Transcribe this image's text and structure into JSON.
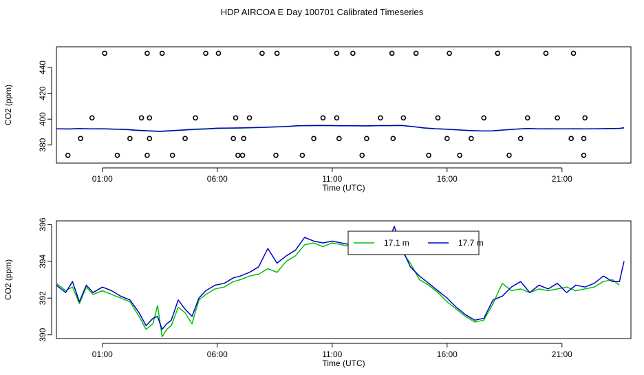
{
  "title": "HDP AIRCOA E  Day 100701  Calibrated Timeseries",
  "colors": {
    "green": "#00c000",
    "blue": "#0000cc",
    "axis": "#000000"
  },
  "chart_data": [
    {
      "type": "scatter",
      "title": "",
      "xlabel": "Time (UTC)",
      "ylabel": "CO2 (ppm)",
      "xlim": [
        -1,
        24
      ],
      "ylim": [
        366,
        456
      ],
      "xticks": [
        1,
        6,
        11,
        16,
        21
      ],
      "xtick_labels": [
        "01:00",
        "06:00",
        "11:00",
        "16:00",
        "21:00"
      ],
      "yticks": [
        380,
        400,
        420,
        440
      ],
      "ytick_labels": [
        "380",
        "400",
        "420",
        "440"
      ],
      "grid": false,
      "series": [
        {
          "marker": "open-circle",
          "x": [
            -0.5,
            0.05,
            0.55,
            1.1,
            1.65,
            2.2,
            2.7,
            2.95,
            2.95,
            3.05,
            3.05,
            3.6,
            4.05,
            4.6,
            5.05,
            5.5,
            6.05,
            6.7,
            6.8,
            6.9,
            7.1,
            7.15,
            7.4,
            7.95,
            8.55,
            8.6,
            9.7,
            10.2,
            10.6,
            11.2,
            11.2,
            11.3,
            11.9,
            12.3,
            12.5,
            13.1,
            13.6,
            13.65,
            14.1,
            14.65,
            15.2,
            15.6,
            16.0,
            16.1,
            16.55,
            17.05,
            17.6,
            18.2,
            18.2,
            18.7,
            19.2,
            19.5,
            20.3,
            20.8,
            21.4,
            21.5,
            21.95,
            21.95,
            22.0
          ],
          "y": [
            372,
            385,
            401,
            451,
            372,
            385,
            401,
            451,
            372,
            385,
            401,
            451,
            372,
            385,
            401,
            451,
            451,
            385,
            401,
            372,
            372,
            385,
            401,
            451,
            372,
            451,
            372,
            385,
            401,
            451,
            401,
            385,
            451,
            372,
            385,
            401,
            451,
            385,
            401,
            451,
            372,
            401,
            385,
            451,
            372,
            385,
            401,
            451,
            451,
            372,
            385,
            401,
            451,
            401,
            385,
            451,
            372,
            385,
            401
          ]
        },
        {
          "name": "17.1 m",
          "color": "#00c000",
          "x": [
            -1.0,
            -0.5,
            0.0,
            0.5,
            1.0,
            1.5,
            2.0,
            2.5,
            3.0,
            3.5,
            4.0,
            4.5,
            5.0,
            5.5,
            6.0,
            6.5,
            7.0,
            7.5,
            8.0,
            8.5,
            9.0,
            9.5,
            10.0,
            10.5,
            11.0,
            11.5,
            12.0,
            12.5,
            13.0,
            13.5,
            14.0,
            14.5,
            15.0,
            15.5,
            16.0,
            16.5,
            17.0,
            17.5,
            18.0,
            18.5,
            19.0,
            19.5,
            20.0,
            20.5,
            21.0,
            21.5,
            22.0,
            22.5,
            23.0,
            23.5,
            23.7
          ],
          "y": [
            392.5,
            392.3,
            392.6,
            392.4,
            392.5,
            392.2,
            392.0,
            391.2,
            390.8,
            390.4,
            390.9,
            391.4,
            392.0,
            392.3,
            392.8,
            393.0,
            393.1,
            393.3,
            393.6,
            393.9,
            394.2,
            394.8,
            394.9,
            395.0,
            394.9,
            394.8,
            394.8,
            394.7,
            394.9,
            394.9,
            395.1,
            394.2,
            393.1,
            392.5,
            392.1,
            391.6,
            391.1,
            390.8,
            390.9,
            391.6,
            392.2,
            392.7,
            392.4,
            392.5,
            392.4,
            392.5,
            392.4,
            392.5,
            392.6,
            392.8,
            393.2
          ]
        },
        {
          "name": "17.7 m",
          "color": "#0000cc",
          "x": [
            -1.0,
            -0.5,
            0.0,
            0.5,
            1.0,
            1.5,
            2.0,
            2.5,
            3.0,
            3.5,
            4.0,
            4.5,
            5.0,
            5.5,
            6.0,
            6.5,
            7.0,
            7.5,
            8.0,
            8.5,
            9.0,
            9.5,
            10.0,
            10.5,
            11.0,
            11.5,
            12.0,
            12.5,
            13.0,
            13.5,
            14.0,
            14.5,
            15.0,
            15.5,
            16.0,
            16.5,
            17.0,
            17.5,
            18.0,
            18.5,
            19.0,
            19.5,
            20.0,
            20.5,
            21.0,
            21.5,
            22.0,
            22.5,
            23.0,
            23.5,
            23.7
          ],
          "y": [
            392.6,
            392.4,
            392.7,
            392.5,
            392.6,
            392.3,
            392.1,
            391.4,
            391.0,
            390.6,
            391.1,
            391.6,
            392.2,
            392.5,
            393.0,
            393.1,
            393.2,
            393.4,
            393.7,
            394.0,
            394.3,
            394.9,
            395.0,
            395.1,
            395.0,
            394.9,
            394.9,
            394.8,
            395.0,
            395.0,
            395.2,
            394.3,
            393.2,
            392.6,
            392.2,
            391.7,
            391.2,
            390.9,
            391.0,
            391.7,
            392.3,
            392.8,
            392.5,
            392.6,
            392.5,
            392.6,
            392.5,
            392.6,
            392.7,
            392.9,
            393.3
          ]
        }
      ]
    },
    {
      "type": "line",
      "title": "",
      "xlabel": "Time (UTC)",
      "ylabel": "CO2 (ppm)",
      "xlim": [
        -1,
        24
      ],
      "ylim": [
        389.8,
        396.2
      ],
      "xticks": [
        1,
        6,
        11,
        16,
        21
      ],
      "xtick_labels": [
        "01:00",
        "06:00",
        "11:00",
        "16:00",
        "21:00"
      ],
      "yticks": [
        390,
        392,
        394,
        396
      ],
      "ytick_labels": [
        "390",
        "392",
        "394",
        "396"
      ],
      "grid": false,
      "legend": {
        "placement": "top-right",
        "labels": [
          "17.1 m",
          "17.7 m"
        ]
      },
      "series": [
        {
          "name": "17.1 m",
          "color": "#00c000",
          "x": [
            -1.0,
            -0.6,
            -0.3,
            0.0,
            0.3,
            0.6,
            1.0,
            1.4,
            1.8,
            2.2,
            2.6,
            2.9,
            3.2,
            3.4,
            3.6,
            3.8,
            4.0,
            4.3,
            4.6,
            4.9,
            5.2,
            5.5,
            5.9,
            6.3,
            6.7,
            7.0,
            7.4,
            7.8,
            8.2,
            8.6,
            9.0,
            9.4,
            9.8,
            10.2,
            10.6,
            11.0,
            11.4,
            11.8,
            12.2,
            12.6,
            13.0,
            13.4,
            13.7,
            14.0,
            14.4,
            14.8,
            15.2,
            15.6,
            16.0,
            16.4,
            16.8,
            17.2,
            17.6,
            18.0,
            18.4,
            18.8,
            19.2,
            19.6,
            20.0,
            20.4,
            20.8,
            21.2,
            21.6,
            22.0,
            22.4,
            22.8,
            23.2,
            23.5
          ],
          "y": [
            392.8,
            392.4,
            392.6,
            391.7,
            392.6,
            392.2,
            392.4,
            392.2,
            392.0,
            391.8,
            391.0,
            390.3,
            390.6,
            391.6,
            389.9,
            390.3,
            390.5,
            391.5,
            391.2,
            390.6,
            391.9,
            392.2,
            392.5,
            392.6,
            392.9,
            393.0,
            393.2,
            393.3,
            393.6,
            393.4,
            394.0,
            394.3,
            394.9,
            395.0,
            394.8,
            395.0,
            394.9,
            394.8,
            394.8,
            394.7,
            394.9,
            395.0,
            395.2,
            394.6,
            393.9,
            393.0,
            392.7,
            392.3,
            391.8,
            391.4,
            391.0,
            390.7,
            390.8,
            391.7,
            392.8,
            392.4,
            392.5,
            392.3,
            392.5,
            392.4,
            392.5,
            392.6,
            392.4,
            392.5,
            392.6,
            392.9,
            393.0,
            392.7
          ]
        },
        {
          "name": "17.7 m",
          "color": "#0000cc",
          "x": [
            -1.0,
            -0.6,
            -0.3,
            0.0,
            0.3,
            0.6,
            1.0,
            1.4,
            1.8,
            2.2,
            2.6,
            2.9,
            3.2,
            3.4,
            3.6,
            3.8,
            4.0,
            4.3,
            4.6,
            4.9,
            5.2,
            5.5,
            5.9,
            6.3,
            6.7,
            7.0,
            7.4,
            7.8,
            8.2,
            8.6,
            9.0,
            9.4,
            9.8,
            10.2,
            10.6,
            11.0,
            11.4,
            11.8,
            12.2,
            12.6,
            13.0,
            13.4,
            13.7,
            14.0,
            14.4,
            14.8,
            15.2,
            15.6,
            16.0,
            16.4,
            16.8,
            17.2,
            17.6,
            18.0,
            18.4,
            18.8,
            19.2,
            19.6,
            20.0,
            20.4,
            20.8,
            21.2,
            21.6,
            22.0,
            22.4,
            22.8,
            23.2,
            23.5,
            23.7
          ],
          "y": [
            392.7,
            392.3,
            392.9,
            391.8,
            392.7,
            392.3,
            392.6,
            392.4,
            392.1,
            391.9,
            391.2,
            390.5,
            390.9,
            391.0,
            390.3,
            390.6,
            390.8,
            391.9,
            391.4,
            391.0,
            392.0,
            392.4,
            392.7,
            392.8,
            393.1,
            393.2,
            393.4,
            393.7,
            394.7,
            393.9,
            394.3,
            394.6,
            395.3,
            395.1,
            395.0,
            395.1,
            395.0,
            394.9,
            395.2,
            394.8,
            395.0,
            394.9,
            395.9,
            394.8,
            393.7,
            393.2,
            392.8,
            392.4,
            392.0,
            391.5,
            391.1,
            390.8,
            390.9,
            391.9,
            392.1,
            392.6,
            392.9,
            392.3,
            392.7,
            392.5,
            392.8,
            392.3,
            392.7,
            392.6,
            392.8,
            393.2,
            392.9,
            392.9,
            394.0
          ]
        }
      ]
    }
  ]
}
